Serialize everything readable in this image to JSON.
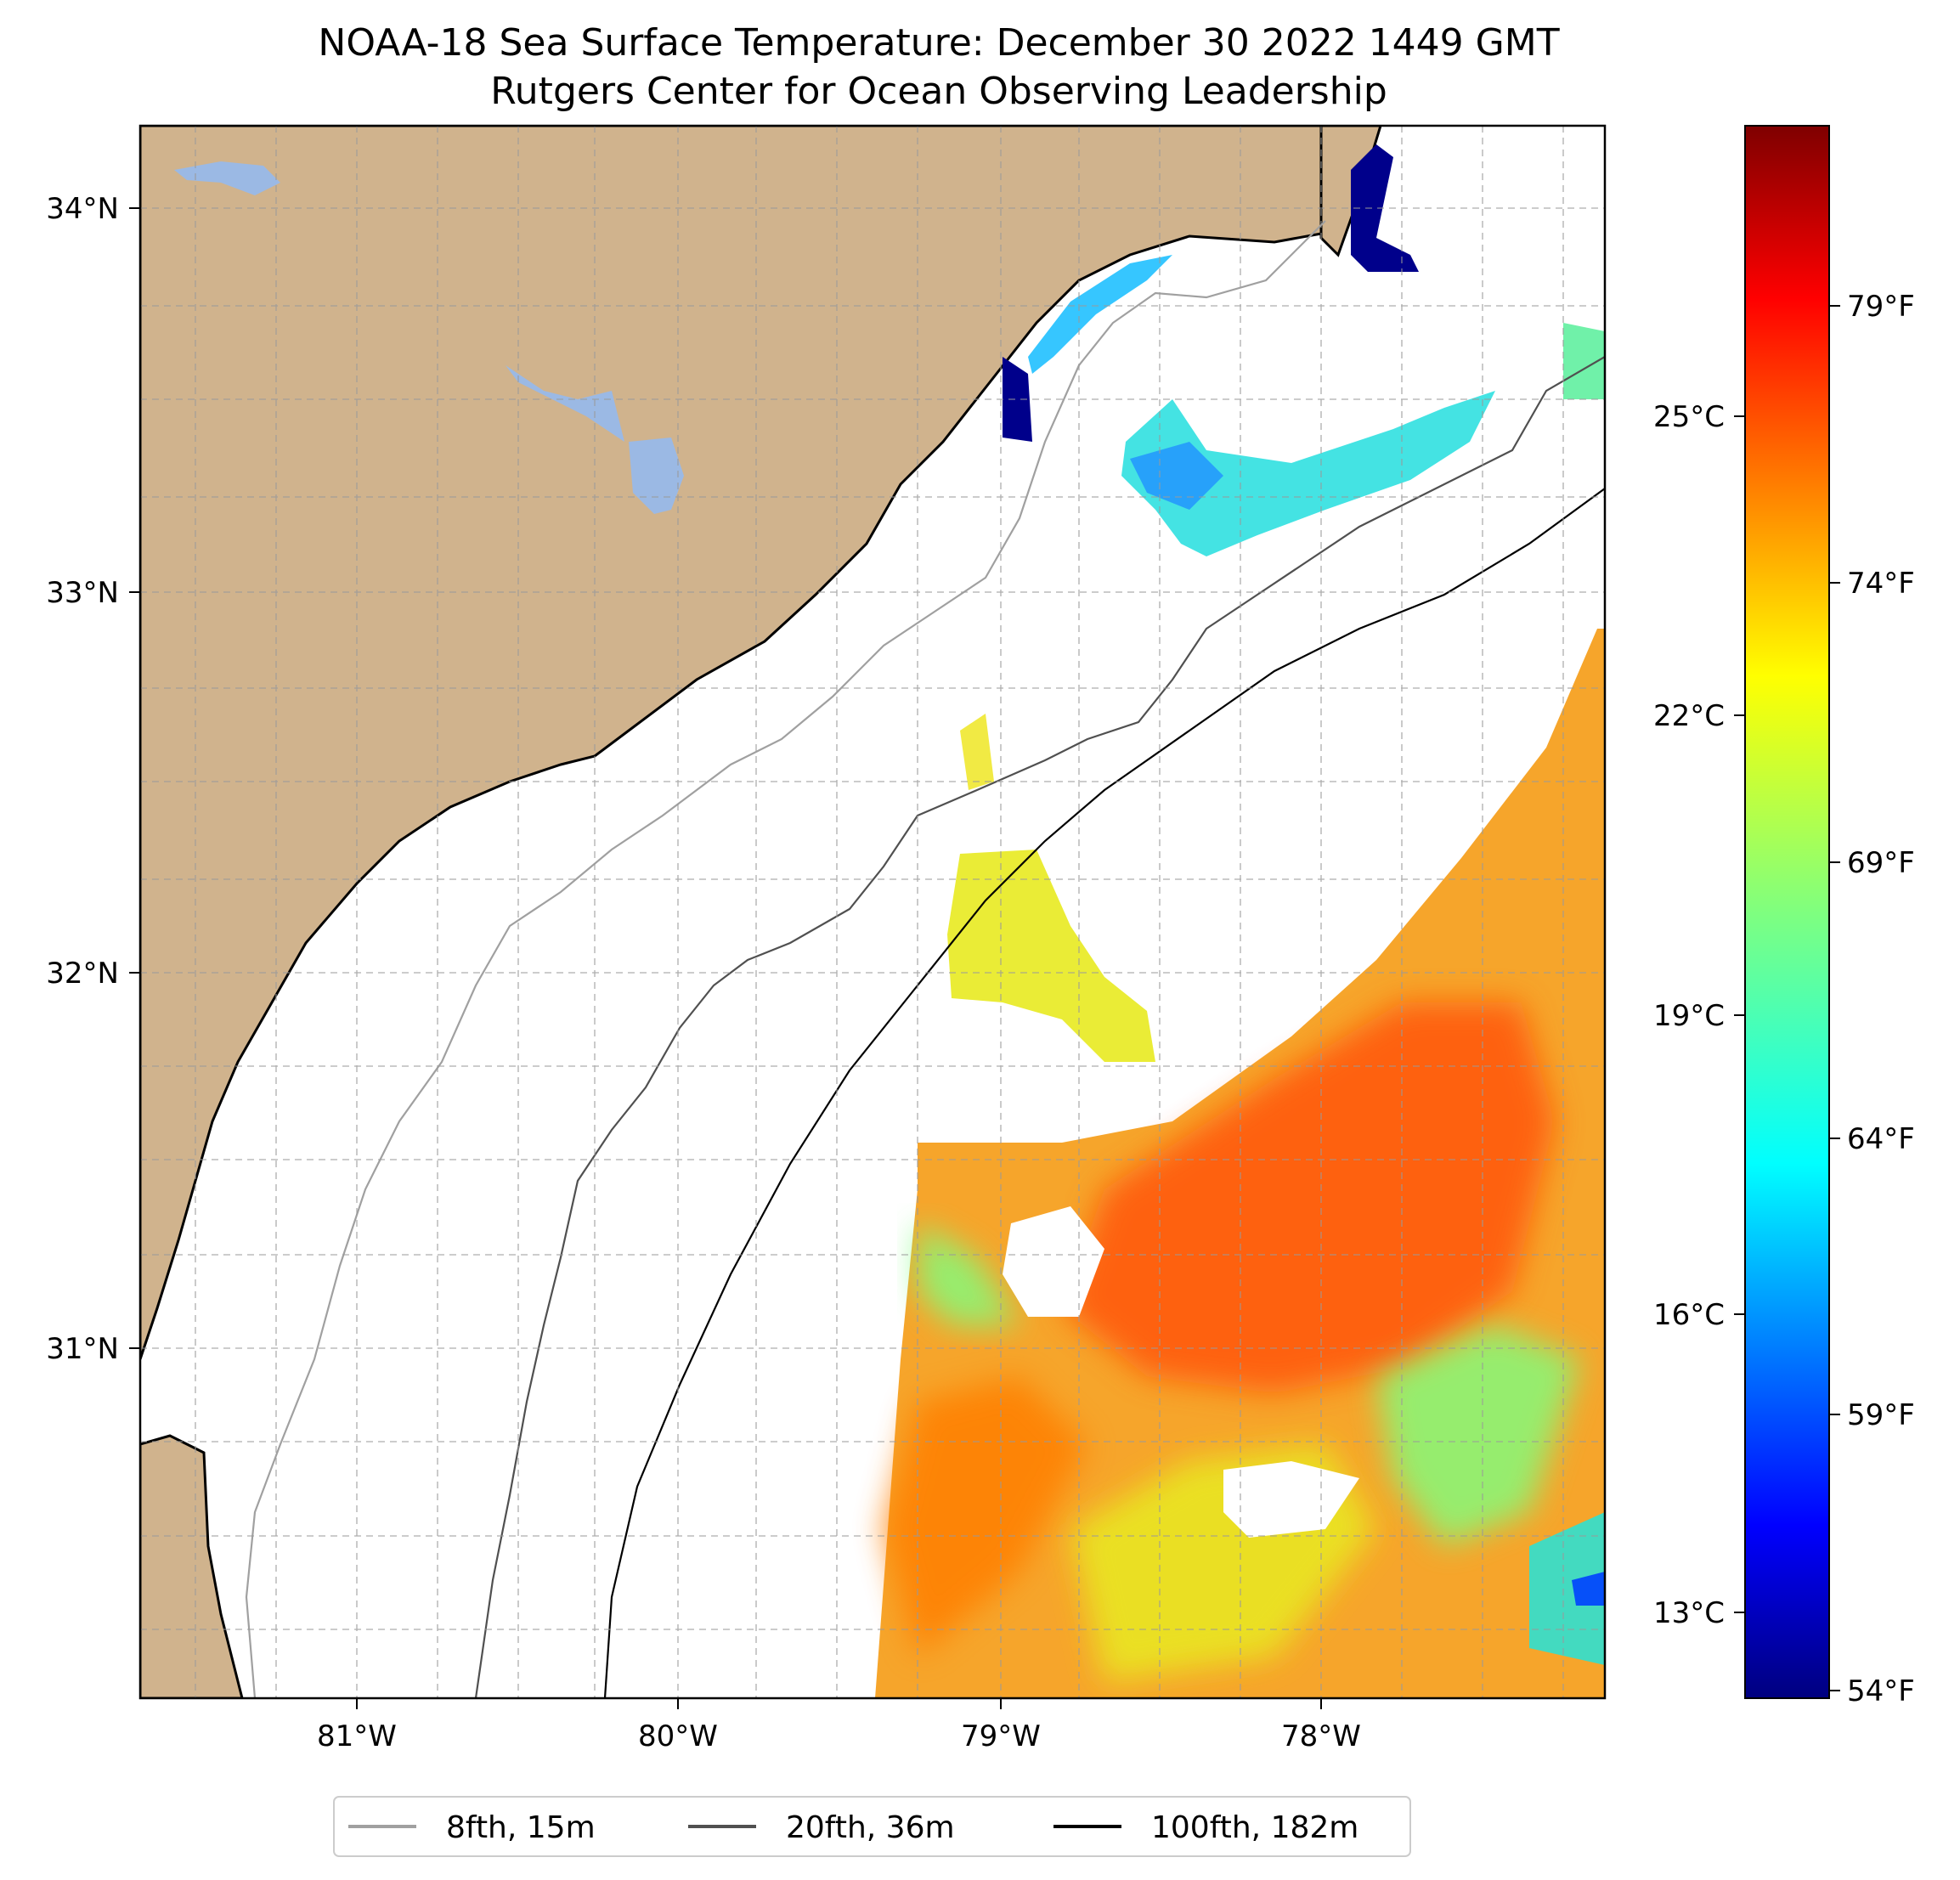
{
  "title": {
    "line1": "NOAA-18 Sea Surface Temperature: December 30 2022 1449 GMT",
    "line2": "Rutgers Center for Ocean Observing Leadership"
  },
  "map": {
    "lat_labels": [
      "34°N",
      "33°N",
      "32°N",
      "31°N"
    ],
    "lon_labels": [
      "81°W",
      "80°W",
      "79°W",
      "78°W"
    ],
    "lat_range": [
      30.1,
      34.22
    ],
    "lon_range": [
      -81.68,
      -77.15
    ],
    "grid": true,
    "colors": {
      "land": "#d0b38d",
      "lake": "#9bb9e4",
      "ocean": "#ffffff"
    }
  },
  "colorbar": {
    "colormap": "jet",
    "celsius_labels": [
      "25°C",
      "22°C",
      "19°C",
      "16°C",
      "13°C"
    ],
    "fahrenheit_labels": [
      "79°F",
      "74°F",
      "69°F",
      "64°F",
      "59°F",
      "54°F"
    ],
    "range_f": [
      54,
      83
    ]
  },
  "legend": {
    "placement": "bottom-center",
    "items": [
      {
        "label": "8fth, 15m",
        "color": "#a0a0a0"
      },
      {
        "label": "20fth, 36m",
        "color": "#505050"
      },
      {
        "label": "100fth, 182m",
        "color": "#000000"
      }
    ]
  }
}
